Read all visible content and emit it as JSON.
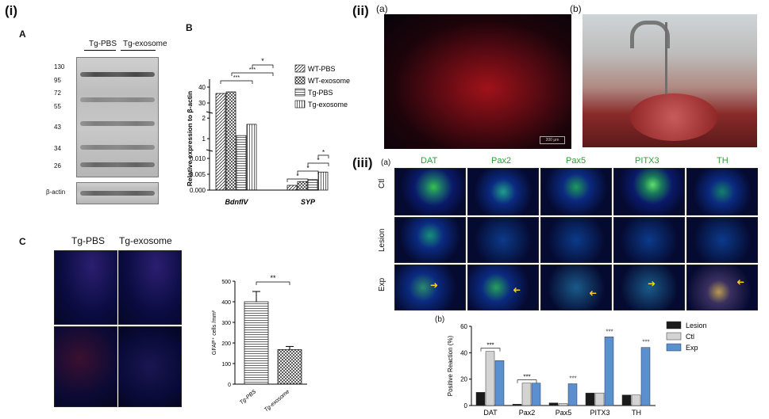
{
  "labels": {
    "i": "(i)",
    "ii": "(ii)",
    "iii": "(iii)",
    "A": "A",
    "B": "B",
    "C": "C",
    "ii_a": "(a)",
    "ii_b": "(b)",
    "iii_a": "(a)",
    "iii_b": "(b)"
  },
  "western": {
    "lanes": [
      "Tg-PBS",
      "Tg-exosome"
    ],
    "markers": [
      "130",
      "95",
      "72",
      "55",
      "43",
      "34",
      "26"
    ],
    "loading_control": "β-actin"
  },
  "micro_c": {
    "headers": [
      "Tg-PBS",
      "Tg-exosome"
    ]
  },
  "scale_text": "200 μm",
  "iii_grid": {
    "columns": [
      {
        "label": "DAT",
        "color": "#2e9e3a"
      },
      {
        "label": "Pax2",
        "color": "#2e9e3a"
      },
      {
        "label": "Pax5",
        "color": "#2e9e3a"
      },
      {
        "label": "PITX3",
        "color": "#2e9e3a"
      },
      {
        "label": "TH",
        "color": "#2e9e3a"
      }
    ],
    "rows": [
      "Ctl",
      "Lesion",
      "Exp"
    ]
  },
  "chart_data": [
    {
      "type": "bar",
      "panel": "B",
      "ylabel": "Relative expression to β-actin",
      "categories": [
        "BdnfIV",
        "SYP"
      ],
      "series": [
        {
          "name": "WT-PBS",
          "values": [
            36,
            0.0015
          ]
        },
        {
          "name": "WT-exosome",
          "values": [
            37,
            0.0027
          ]
        },
        {
          "name": "Tg-PBS",
          "values": [
            1.15,
            0.0033
          ]
        },
        {
          "name": "Tg-exosome",
          "values": [
            1.7,
            0.0057
          ]
        }
      ],
      "axis_breaks": {
        "lower_ticks": [
          "0.000",
          "0.005",
          "0.010"
        ],
        "middle_ticks": [
          "1",
          "2"
        ],
        "upper_ticks": [
          "30",
          "40"
        ]
      },
      "significance": [
        "*",
        "***",
        "***",
        "*",
        "*",
        "*",
        "*"
      ]
    },
    {
      "type": "bar",
      "panel": "C",
      "ylabel": "GFAP⁺ cells /mm²",
      "categories": [
        "Tg-PBS",
        "Tg-exosome"
      ],
      "values": [
        400,
        168
      ],
      "errors": [
        50,
        15
      ],
      "ylim": [
        0,
        500
      ],
      "yticks": [
        "0",
        "100",
        "200",
        "300",
        "400",
        "500"
      ],
      "significance": "**"
    },
    {
      "type": "bar",
      "panel": "iii-b",
      "ylabel": "Positive Reaction (%)",
      "categories": [
        "DAT",
        "Pax2",
        "Pax5",
        "PITX3",
        "TH"
      ],
      "series": [
        {
          "name": "Lesion",
          "color": "#1a1a1a",
          "values": [
            10,
            1,
            2,
            9.5,
            8
          ]
        },
        {
          "name": "Ctl",
          "color": "#d3d3d3",
          "values": [
            41,
            17,
            1.5,
            9.5,
            8
          ]
        },
        {
          "name": "Exp",
          "color": "#5a8fd0",
          "values": [
            34,
            17,
            16.5,
            52,
            44
          ]
        }
      ],
      "ylim": [
        0,
        60
      ],
      "yticks": [
        "0",
        "20",
        "40",
        "60"
      ],
      "significance": [
        "***",
        "***",
        "***",
        "***",
        "***"
      ]
    }
  ]
}
